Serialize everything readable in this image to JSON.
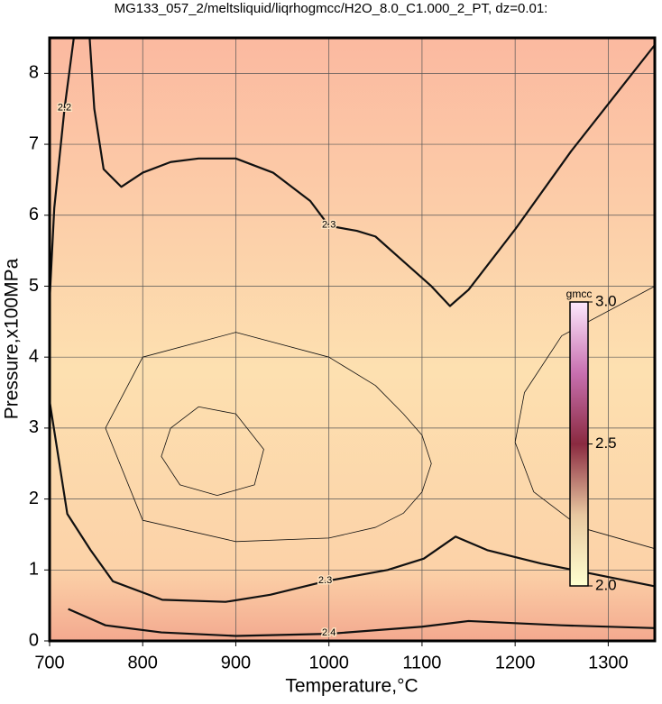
{
  "chart_data": {
    "type": "contour",
    "title": "MG133_057_2/meltsliquid/liqrhogmcc/H2O_8.0_C1.000_2_PT, dz=0.01:",
    "x_label": "Temperature,°C",
    "y_label": "Pressure,x100MPa",
    "xlim": [
      700,
      1350
    ],
    "ylim": [
      0,
      8.5
    ],
    "xticks": [
      700,
      800,
      900,
      1000,
      1100,
      1200,
      1300
    ],
    "yticks": [
      0,
      1,
      2,
      3,
      4,
      5,
      6,
      7,
      8
    ],
    "grid": true,
    "contours": [
      {
        "level": 2.3,
        "x": [
          743,
          748,
          758,
          777,
          800,
          830,
          860,
          900,
          940,
          980,
          1000,
          1030,
          1050,
          1080,
          1110,
          1130,
          1150,
          1200,
          1260,
          1320,
          1350
        ],
        "y": [
          8.5,
          7.5,
          6.65,
          6.4,
          6.6,
          6.75,
          6.8,
          6.8,
          6.6,
          6.2,
          5.85,
          5.78,
          5.7,
          5.35,
          5.0,
          4.72,
          4.95,
          5.8,
          6.9,
          7.9,
          8.4
        ]
      },
      {
        "level": 2.3,
        "x": [
          700,
          719,
          744,
          768,
          821,
          889,
          937,
          996,
          1063,
          1102,
          1136,
          1170,
          1228,
          1350
        ],
        "y": [
          3.38,
          1.79,
          1.28,
          0.84,
          0.58,
          0.55,
          0.65,
          0.84,
          1.0,
          1.16,
          1.47,
          1.28,
          1.09,
          0.77
        ]
      },
      {
        "level": 2.4,
        "x": [
          720,
          760,
          820,
          900,
          1000,
          1100,
          1150,
          1250,
          1350
        ],
        "y": [
          0.45,
          0.22,
          0.12,
          0.07,
          0.1,
          0.2,
          0.28,
          0.22,
          0.18
        ]
      },
      {
        "level": 2.2,
        "x": [
          700,
          705,
          716,
          726
        ],
        "y": [
          4.8,
          6.1,
          7.5,
          8.5
        ]
      }
    ],
    "minor_contours": [
      {
        "level": 2.27,
        "x": [
          830,
          860,
          900,
          930,
          920,
          880,
          840,
          820,
          830
        ],
        "y": [
          3.0,
          3.3,
          3.2,
          2.7,
          2.2,
          2.05,
          2.2,
          2.6,
          3.0
        ]
      },
      {
        "level": 2.28,
        "x": [
          760,
          800,
          900,
          1000,
          1050,
          1080,
          1100,
          1110,
          1100,
          1080,
          1050,
          1000,
          900,
          800,
          760
        ],
        "y": [
          3.0,
          4.0,
          4.35,
          4.0,
          3.6,
          3.2,
          2.9,
          2.5,
          2.1,
          1.8,
          1.6,
          1.45,
          1.4,
          1.7,
          3.0
        ]
      },
      {
        "level": 2.28,
        "x": [
          1350,
          1250,
          1210,
          1200,
          1220,
          1270,
          1350
        ],
        "y": [
          5.0,
          4.3,
          3.5,
          2.8,
          2.1,
          1.6,
          1.3
        ]
      }
    ],
    "colorbar": {
      "title": "gmcc",
      "lim": [
        2.0,
        3.0
      ],
      "ticks": [
        {
          "value": 2.0,
          "label": "2.0"
        },
        {
          "value": 2.5,
          "label": "2.5"
        },
        {
          "value": 3.0,
          "label": "3.0"
        }
      ],
      "colors": [
        "#ffffd0",
        "#e8c8a0",
        "#8a2a40",
        "#c870b0",
        "#fde8fd"
      ]
    }
  }
}
